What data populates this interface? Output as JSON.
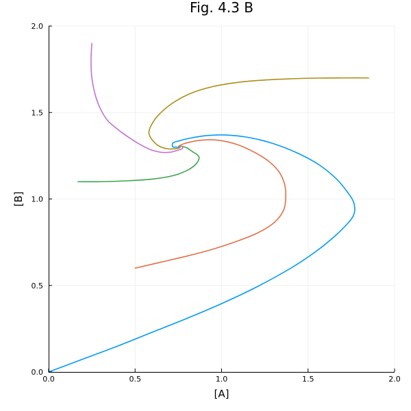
{
  "chart_data": {
    "type": "line",
    "title": "Fig. 4.3 B",
    "xlabel": "[A]",
    "ylabel": "[B]",
    "xlim": [
      0,
      2
    ],
    "ylim": [
      0,
      2
    ],
    "xticks": [
      0.0,
      0.5,
      1.0,
      1.5,
      2.0
    ],
    "yticks": [
      0.0,
      0.5,
      1.0,
      1.5,
      2.0
    ],
    "xtick_labels": [
      "0.0",
      "0.5",
      "1.0",
      "1.5",
      "2.0"
    ],
    "ytick_labels": [
      "0.0",
      "0.5",
      "1.0",
      "1.5",
      "2.0"
    ],
    "grid": true,
    "legend": "none",
    "series": [
      {
        "color": "#009AFA",
        "x": [
          0.0,
          0.2,
          0.4,
          0.6,
          0.8,
          1.0,
          1.2,
          1.4,
          1.55,
          1.66,
          1.73,
          1.76,
          1.77,
          1.76,
          1.72,
          1.66,
          1.56,
          1.44,
          1.3,
          1.16,
          1.02,
          0.9,
          0.81,
          0.75,
          0.72,
          0.715,
          0.72,
          0.735,
          0.745,
          0.75
        ],
        "y": [
          0.0,
          0.075,
          0.15,
          0.23,
          0.31,
          0.395,
          0.49,
          0.6,
          0.7,
          0.79,
          0.86,
          0.9,
          0.94,
          0.99,
          1.05,
          1.12,
          1.2,
          1.265,
          1.32,
          1.355,
          1.37,
          1.365,
          1.35,
          1.335,
          1.325,
          1.31,
          1.3,
          1.3,
          1.3,
          1.3
        ]
      },
      {
        "color": "#E26F46",
        "x": [
          0.5,
          0.65,
          0.8,
          0.95,
          1.1,
          1.2,
          1.28,
          1.33,
          1.36,
          1.37,
          1.37,
          1.36,
          1.33,
          1.27,
          1.19,
          1.09,
          0.98,
          0.88,
          0.8,
          0.76,
          0.75,
          0.755,
          0.76
        ],
        "y": [
          0.6,
          0.635,
          0.67,
          0.71,
          0.76,
          0.8,
          0.845,
          0.89,
          0.94,
          0.99,
          1.05,
          1.1,
          1.16,
          1.22,
          1.27,
          1.315,
          1.34,
          1.34,
          1.325,
          1.31,
          1.3,
          1.295,
          1.3
        ]
      },
      {
        "color": "#3DA44D",
        "x": [
          0.17,
          0.3,
          0.45,
          0.6,
          0.72,
          0.8,
          0.85,
          0.87,
          0.86,
          0.83,
          0.8,
          0.77,
          0.755,
          0.75,
          0.755
        ],
        "y": [
          1.1,
          1.1,
          1.105,
          1.115,
          1.135,
          1.165,
          1.2,
          1.235,
          1.255,
          1.275,
          1.295,
          1.305,
          1.305,
          1.3,
          1.3
        ]
      },
      {
        "color": "#C271D2",
        "x": [
          0.25,
          0.245,
          0.25,
          0.27,
          0.3,
          0.34,
          0.39,
          0.45,
          0.52,
          0.59,
          0.65,
          0.7,
          0.74,
          0.77,
          0.775,
          0.765,
          0.755
        ],
        "y": [
          1.9,
          1.8,
          1.7,
          1.6,
          1.52,
          1.455,
          1.41,
          1.365,
          1.32,
          1.285,
          1.27,
          1.27,
          1.28,
          1.29,
          1.3,
          1.305,
          1.3
        ]
      },
      {
        "color": "#AC8D18",
        "x": [
          1.85,
          1.7,
          1.55,
          1.4,
          1.25,
          1.1,
          0.95,
          0.82,
          0.71,
          0.63,
          0.59,
          0.58,
          0.6,
          0.64,
          0.69,
          0.73,
          0.755,
          0.76
        ],
        "y": [
          1.7,
          1.7,
          1.699,
          1.695,
          1.688,
          1.675,
          1.65,
          1.61,
          1.55,
          1.48,
          1.42,
          1.38,
          1.34,
          1.305,
          1.29,
          1.29,
          1.295,
          1.3
        ]
      }
    ]
  }
}
